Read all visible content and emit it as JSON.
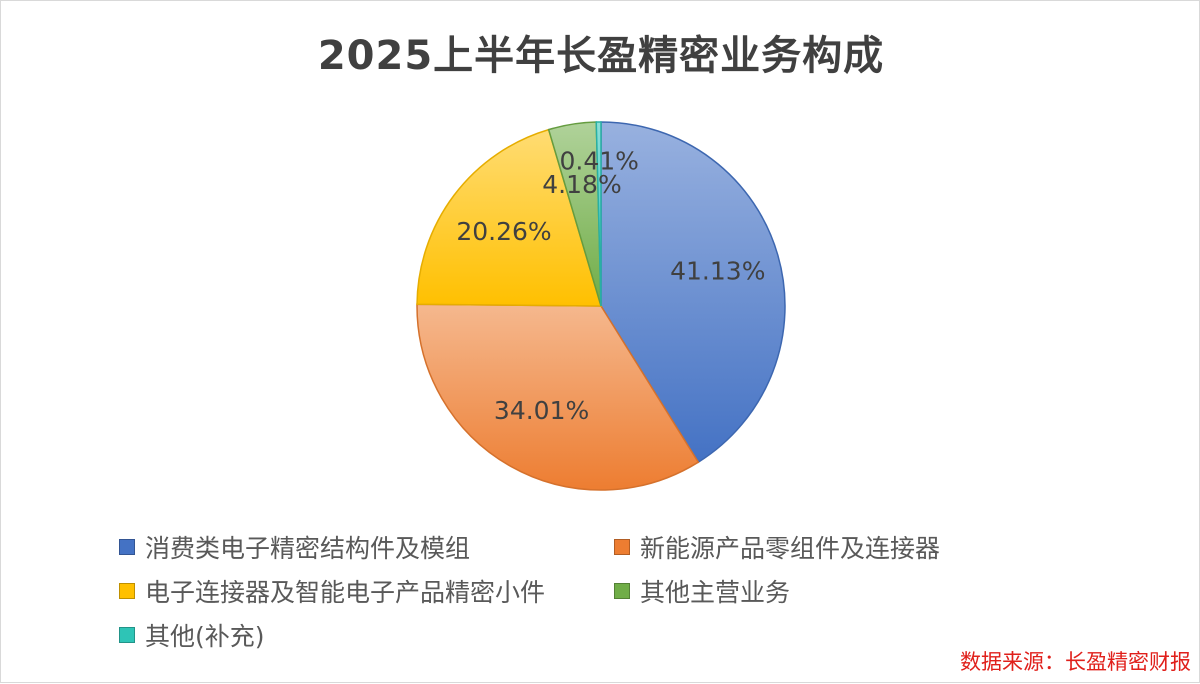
{
  "source_note": "数据来源：长盈精密财报",
  "chart_data": {
    "type": "pie",
    "title": "2025上半年长盈精密业务构成",
    "start_angle_deg": 0,
    "direction": "clockwise",
    "legend_position": "bottom",
    "slices": [
      {
        "label": "消费类电子精密结构件及模组",
        "value": 41.13,
        "data_label": "41.13%",
        "color": "#4472c4"
      },
      {
        "label": "新能源产品零组件及连接器",
        "value": 34.01,
        "data_label": "34.01%",
        "color": "#ed7d31"
      },
      {
        "label": "电子连接器及智能电子产品精密小件",
        "value": 20.26,
        "data_label": "20.26%",
        "color": "#ffc000"
      },
      {
        "label": "其他主营业务",
        "value": 4.18,
        "data_label": "4.18%",
        "color": "#70ad47"
      },
      {
        "label": "其他(补充)",
        "value": 0.41,
        "data_label": "0.41%",
        "color": "#2ec4b6"
      }
    ]
  }
}
